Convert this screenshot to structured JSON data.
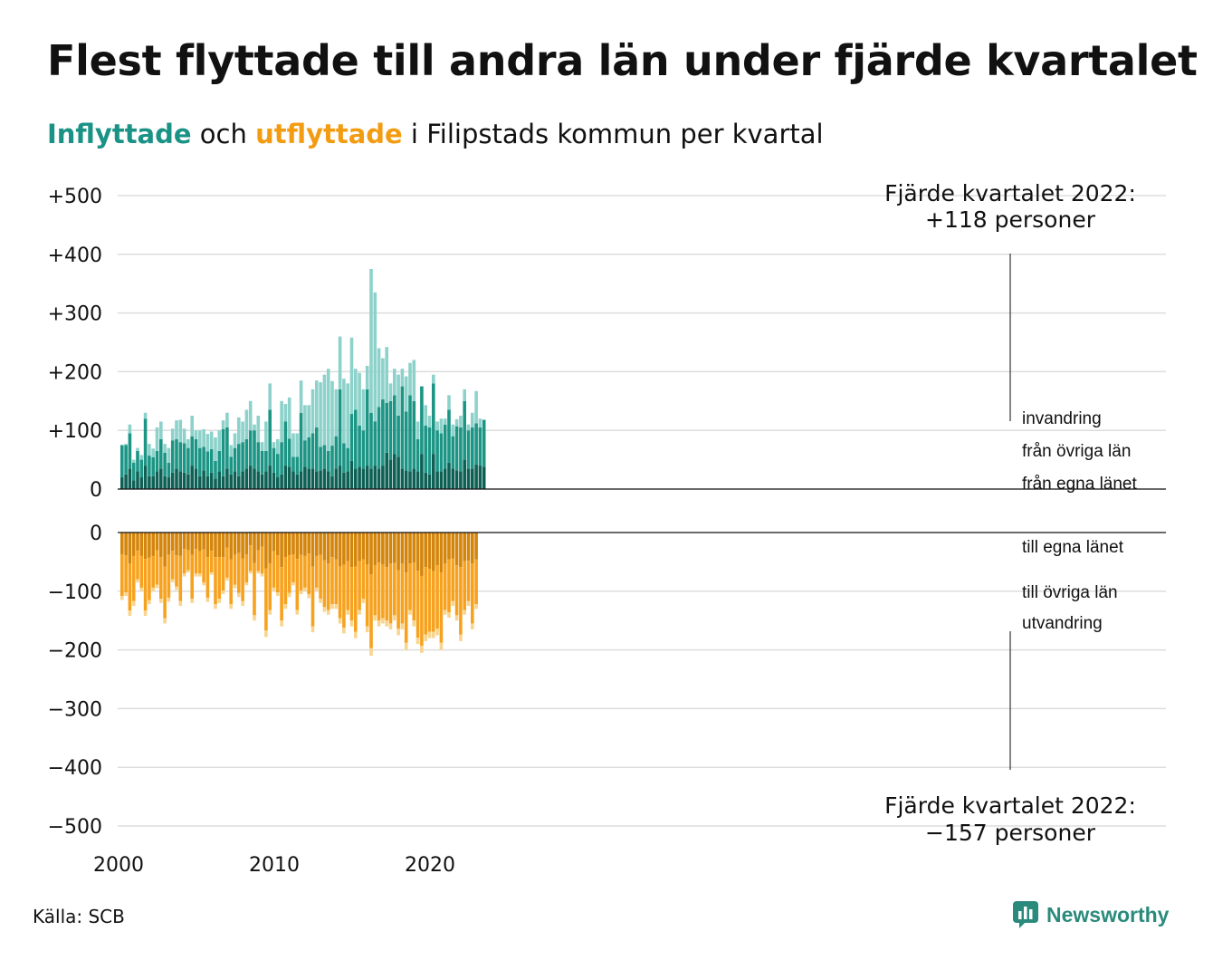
{
  "title": "Flest flyttade till andra län under fjärde kvartalet",
  "subtitle": {
    "in_word": "Inflyttade",
    "mid": " och ",
    "out_word": "utflyttade",
    "rest": " i Filipstads kommun per kvartal"
  },
  "source": "Källa: SCB",
  "logo": "Newsworthy",
  "colors": {
    "in_dark": "#0e6055",
    "in_mid": "#1c9585",
    "in_light": "#8dd2ca",
    "out_dark": "#d4850b",
    "out_mid": "#f7a21f",
    "out_light": "#f8d48e",
    "grid": "#dddddd"
  },
  "chart_data": {
    "type": "bar",
    "title": "Flest flyttade till andra län under fjärde kvartalet",
    "subtitle": "Inflyttade och utflyttade i Filipstads kommun per kvartal",
    "quarter_start": "2000 Q1",
    "x_ticks": [
      "2000",
      "2010",
      "2020"
    ],
    "y_ticks_top": [
      "+500",
      "+400",
      "+300",
      "+200",
      "+100",
      "0"
    ],
    "y_ticks_bottom": [
      "0",
      "−100",
      "−200",
      "−300",
      "−400",
      "−500"
    ],
    "ylim_top": [
      0,
      500
    ],
    "ylim_bottom": [
      -500,
      0
    ],
    "grid": true,
    "in_series_labels": [
      "invandring",
      "från övriga län",
      "från egna länet"
    ],
    "out_series_labels": [
      "till egna länet",
      "till övriga län",
      "utvandring"
    ],
    "annotation_top": [
      "Fjärde kvartalet 2022:",
      "+118 personer"
    ],
    "annotation_bottom": [
      "Fjärde kvartalet 2022:",
      "−157 personer"
    ],
    "in_own": [
      20,
      25,
      35,
      15,
      30,
      20,
      40,
      22,
      22,
      30,
      35,
      22,
      20,
      28,
      35,
      30,
      28,
      25,
      40,
      35,
      22,
      32,
      22,
      28,
      18,
      30,
      22,
      35,
      25,
      30,
      22,
      30,
      35,
      40,
      35,
      30,
      25,
      30,
      40,
      28,
      20,
      25,
      40,
      38,
      30,
      25,
      30,
      38,
      35,
      35,
      30,
      32,
      35,
      30,
      22,
      35,
      40,
      28,
      30,
      48,
      35,
      38,
      35,
      40,
      35,
      40,
      35,
      40,
      62,
      50,
      60,
      55,
      35,
      32,
      30,
      35,
      30,
      60,
      28,
      25,
      60,
      30,
      30,
      35,
      45,
      35,
      32,
      30,
      50,
      35,
      35,
      42,
      40,
      38
    ],
    "in_other": [
      55,
      50,
      60,
      30,
      35,
      30,
      80,
      35,
      32,
      35,
      50,
      40,
      25,
      55,
      50,
      50,
      50,
      45,
      50,
      50,
      48,
      40,
      42,
      40,
      30,
      35,
      80,
      70,
      30,
      40,
      55,
      50,
      50,
      60,
      65,
      50,
      40,
      35,
      95,
      42,
      40,
      55,
      75,
      48,
      25,
      30,
      100,
      45,
      53,
      60,
      75,
      40,
      40,
      35,
      52,
      55,
      130,
      50,
      40,
      80,
      100,
      70,
      65,
      130,
      95,
      75,
      105,
      113,
      85,
      100,
      100,
      70,
      140,
      100,
      130,
      115,
      55,
      115,
      80,
      80,
      120,
      70,
      65,
      75,
      90,
      55,
      75,
      75,
      100,
      65,
      70,
      70,
      65,
      80
    ],
    "in_imm": [
      0,
      2,
      15,
      5,
      5,
      8,
      10,
      20,
      15,
      40,
      30,
      15,
      25,
      20,
      32,
      38,
      25,
      15,
      35,
      15,
      30,
      30,
      30,
      30,
      40,
      35,
      15,
      25,
      20,
      25,
      45,
      35,
      50,
      50,
      10,
      45,
      15,
      50,
      45,
      10,
      25,
      70,
      30,
      70,
      40,
      40,
      55,
      60,
      55,
      75,
      80,
      110,
      120,
      140,
      110,
      80,
      90,
      110,
      110,
      130,
      70,
      90,
      70,
      40,
      245,
      220,
      100,
      70,
      95,
      30,
      45,
      70,
      30,
      60,
      55,
      70,
      30,
      0,
      35,
      20,
      15,
      15,
      25,
      10,
      25,
      20,
      12,
      20,
      20,
      10,
      25,
      55,
      15,
      0
    ]
  }
}
